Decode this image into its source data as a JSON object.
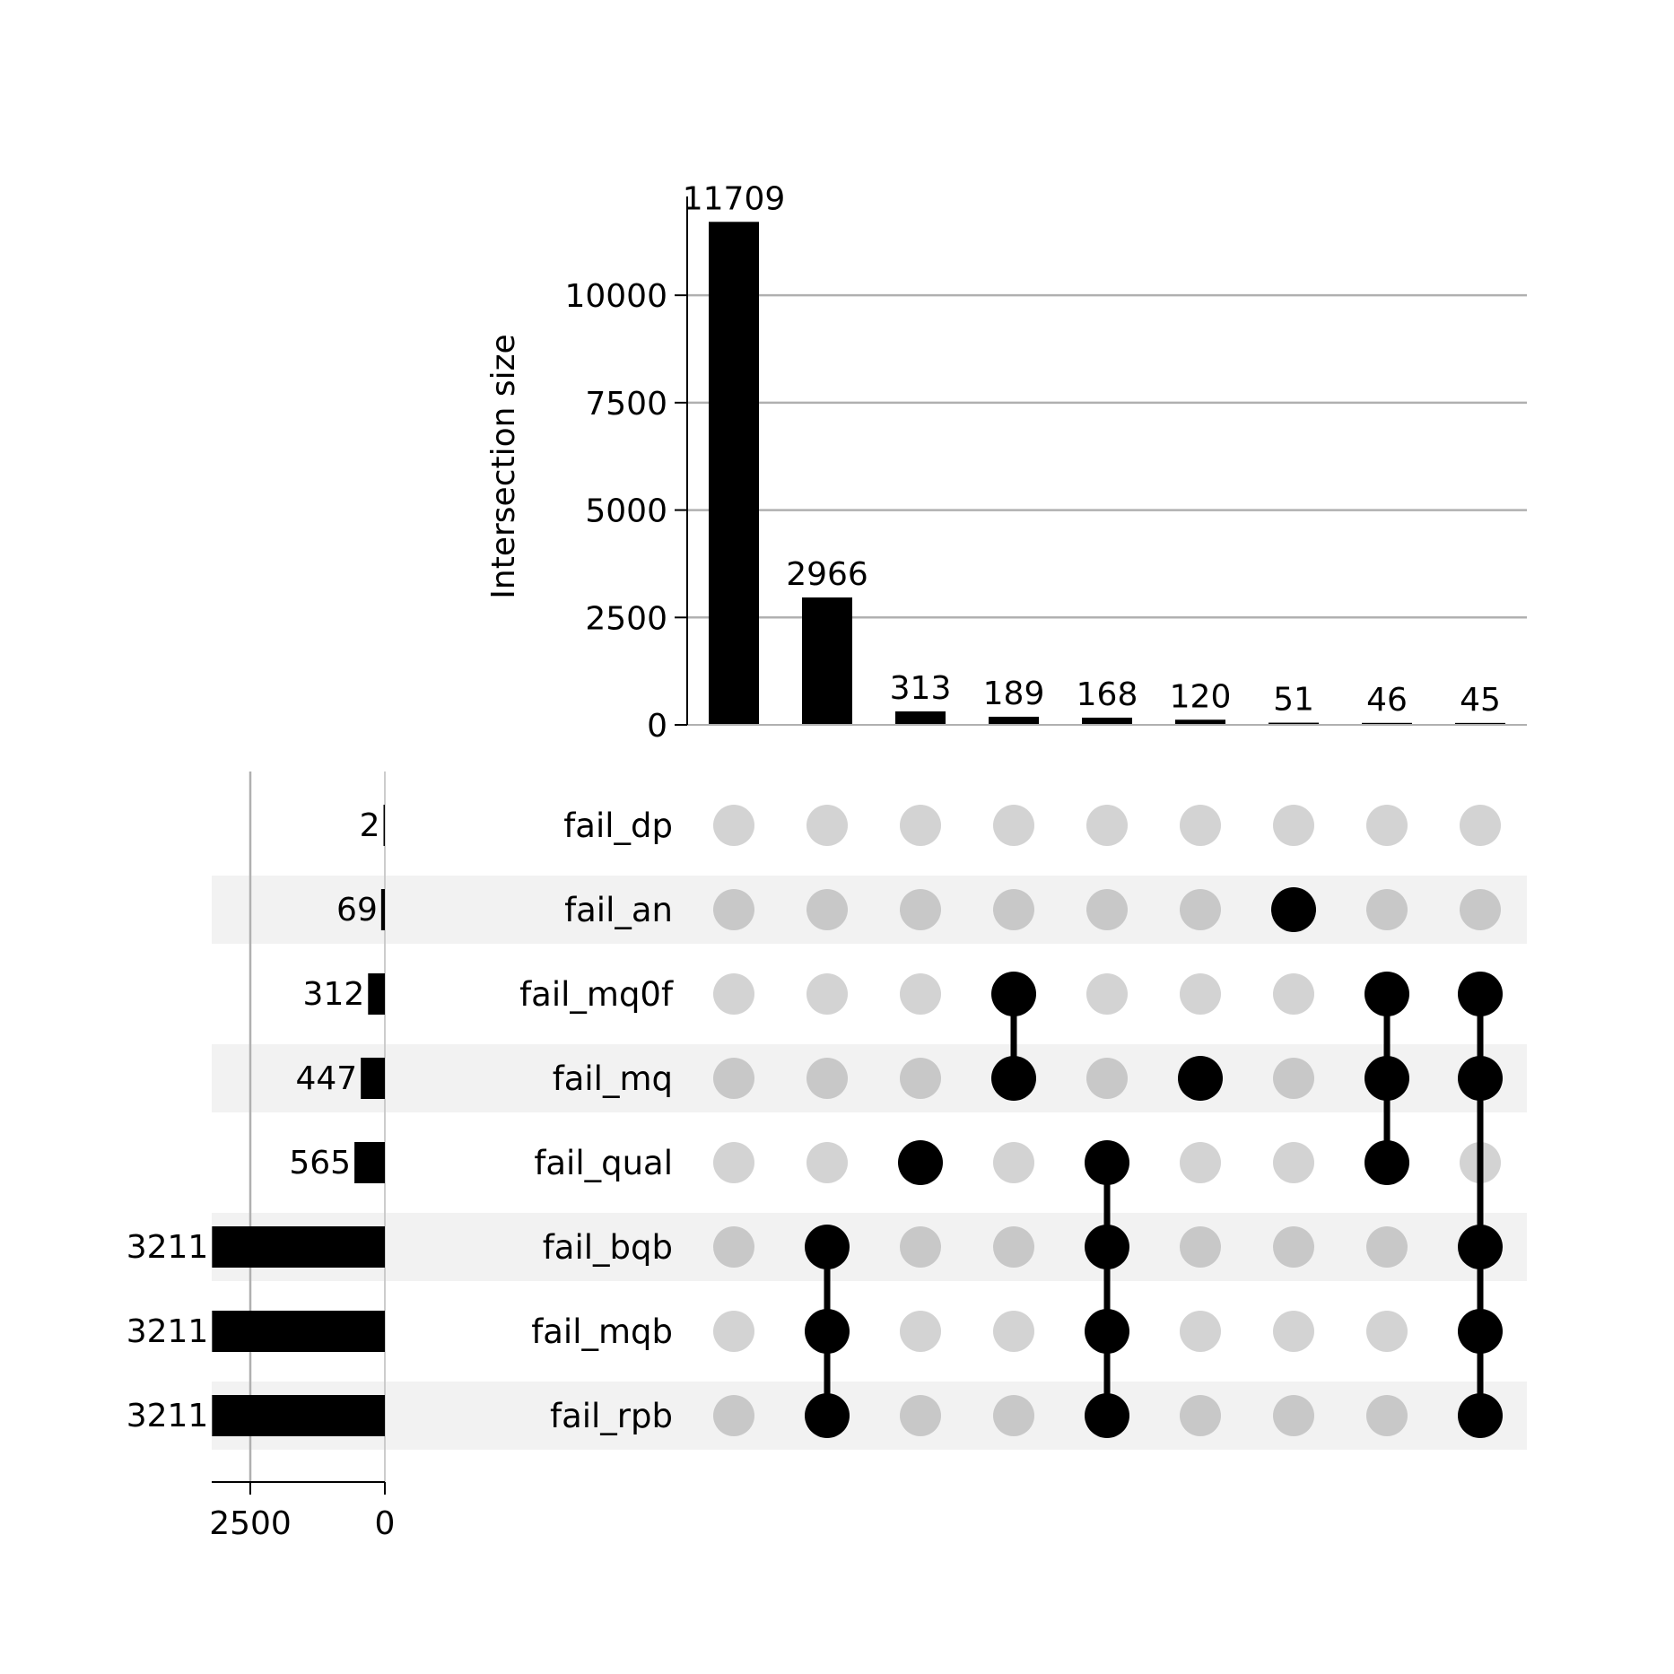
{
  "chart_data": {
    "type": "upset",
    "ylabel": "Intersection size",
    "yticks": [
      0,
      2500,
      5000,
      7500,
      10000
    ],
    "ylim": [
      0,
      12300
    ],
    "grid": true,
    "sets": [
      "fail_dp",
      "fail_an",
      "fail_mq0f",
      "fail_mq",
      "fail_qual",
      "fail_bqb",
      "fail_mqb",
      "fail_rpb"
    ],
    "set_sizes": [
      2,
      69,
      312,
      447,
      565,
      3211,
      3211,
      3211
    ],
    "set_size_ticks": [
      2500,
      0
    ],
    "intersections": [
      {
        "value": 11709,
        "members": []
      },
      {
        "value": 2966,
        "members": [
          "fail_bqb",
          "fail_mqb",
          "fail_rpb"
        ]
      },
      {
        "value": 313,
        "members": [
          "fail_qual"
        ]
      },
      {
        "value": 189,
        "members": [
          "fail_mq0f",
          "fail_mq"
        ]
      },
      {
        "value": 168,
        "members": [
          "fail_qual",
          "fail_bqb",
          "fail_mqb",
          "fail_rpb"
        ]
      },
      {
        "value": 120,
        "members": [
          "fail_mq"
        ]
      },
      {
        "value": 51,
        "members": [
          "fail_an"
        ]
      },
      {
        "value": 46,
        "members": [
          "fail_mq0f",
          "fail_mq",
          "fail_qual"
        ]
      },
      {
        "value": 45,
        "members": [
          "fail_mq0f",
          "fail_mq",
          "fail_bqb",
          "fail_mqb",
          "fail_rpb"
        ]
      }
    ],
    "colors": {
      "bar": "#000000",
      "dot_active": "#000000",
      "dot_inactive_light_row": "#d3d3d3",
      "dot_inactive_shaded_row": "#c8c8c8",
      "row_shade": "#f2f2f2",
      "grid": "#b0b0b0"
    }
  }
}
